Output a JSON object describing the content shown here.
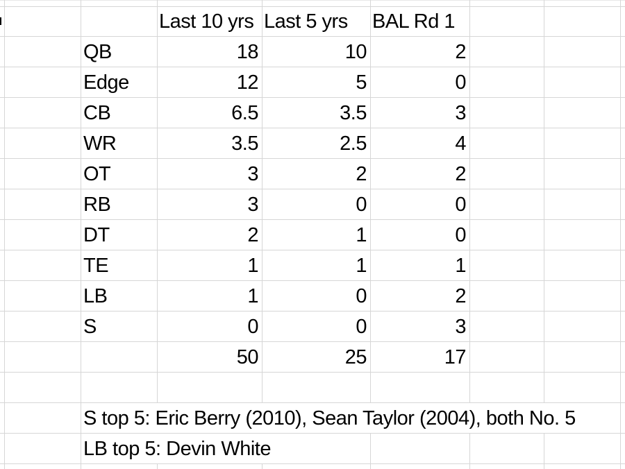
{
  "colors": {
    "grid_line": "#d6d6d6",
    "grid_line_light": "#e8e8e8",
    "text": "#000000",
    "background": "#ffffff"
  },
  "headers": [
    "Last 10 yrs",
    "Last 5 yrs",
    "BAL Rd 1"
  ],
  "position_rows": [
    {
      "label": "QB",
      "values": [
        "18",
        "10",
        "2"
      ]
    },
    {
      "label": "Edge",
      "values": [
        "12",
        "5",
        "0"
      ]
    },
    {
      "label": "CB",
      "values": [
        "6.5",
        "3.5",
        "3"
      ]
    },
    {
      "label": "WR",
      "values": [
        "3.5",
        "2.5",
        "4"
      ]
    },
    {
      "label": "OT",
      "values": [
        "3",
        "2",
        "2"
      ]
    },
    {
      "label": "RB",
      "values": [
        "3",
        "0",
        "0"
      ]
    },
    {
      "label": "DT",
      "values": [
        "2",
        "1",
        "0"
      ]
    },
    {
      "label": "TE",
      "values": [
        "1",
        "1",
        "1"
      ]
    },
    {
      "label": "LB",
      "values": [
        "1",
        "0",
        "2"
      ]
    },
    {
      "label": "S",
      "values": [
        "0",
        "0",
        "3"
      ]
    }
  ],
  "totals_row": {
    "values": [
      "50",
      "25",
      "17"
    ]
  },
  "notes": [
    {
      "text": "S top 5: Eric Berry (2010), Sean Taylor (2004), both No. 5"
    },
    {
      "text": "LB top 5: Devin White"
    }
  ]
}
